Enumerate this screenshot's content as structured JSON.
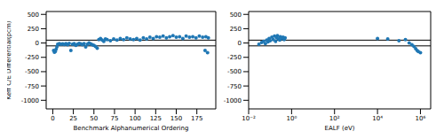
{
  "chart_data": [
    {
      "type": "scatter",
      "x_label": "Benchmark Alphanumerical Ordering",
      "y_label": "Keff C/E Differential(pcm)",
      "color": "#1f77b4",
      "marker": "circle",
      "x": [
        1,
        2,
        3,
        4,
        5,
        6,
        8,
        10,
        12,
        14,
        16,
        18,
        20,
        22,
        24,
        26,
        28,
        30,
        32,
        34,
        36,
        38,
        40,
        42,
        44,
        46,
        48,
        50,
        52,
        54,
        56,
        58,
        60,
        62,
        64,
        66,
        70,
        74,
        78,
        82,
        86,
        90,
        94,
        98,
        102,
        106,
        110,
        114,
        118,
        122,
        126,
        130,
        134,
        138,
        142,
        146,
        150,
        154,
        158,
        162,
        166,
        170,
        174,
        178,
        182,
        185,
        186,
        188,
        189
      ],
      "values": [
        -130,
        -160,
        -150,
        -110,
        -70,
        -20,
        -10,
        -20,
        -15,
        -25,
        -10,
        -30,
        -5,
        -130,
        -20,
        -10,
        -40,
        -20,
        -5,
        -15,
        -30,
        -10,
        -70,
        -20,
        0,
        -15,
        -30,
        -40,
        -60,
        -90,
        60,
        80,
        50,
        30,
        70,
        60,
        40,
        70,
        50,
        80,
        60,
        90,
        70,
        60,
        80,
        50,
        90,
        70,
        100,
        80,
        110,
        100,
        120,
        90,
        110,
        130,
        100,
        110,
        80,
        120,
        100,
        110,
        90,
        120,
        100,
        -130,
        110,
        -170,
        90
      ],
      "xlim": [
        -8,
        198
      ],
      "ylim": [
        -1150,
        550
      ],
      "xticks": [
        0,
        25,
        50,
        75,
        100,
        125,
        150,
        175
      ],
      "yticks": [
        -1000,
        -750,
        -500,
        -250,
        0,
        250,
        500
      ],
      "reference_lines": [
        50,
        -50
      ]
    },
    {
      "type": "scatter",
      "x_label": "EALF (eV)",
      "color": "#1f77b4",
      "marker": "circle",
      "log": "x",
      "x": [
        0.03,
        0.04,
        0.05,
        0.06,
        0.07,
        0.08,
        0.09,
        0.1,
        0.12,
        0.14,
        0.16,
        0.18,
        0.2,
        0.22,
        0.25,
        0.28,
        0.3,
        0.35,
        0.4,
        0.45,
        0.5,
        10000,
        30000,
        100000,
        200000,
        300000,
        400000,
        500000,
        600000,
        700000,
        800000,
        1000000
      ],
      "values": [
        -20,
        10,
        30,
        -10,
        50,
        20,
        80,
        40,
        100,
        60,
        120,
        30,
        90,
        130,
        70,
        50,
        110,
        80,
        100,
        60,
        90,
        80,
        70,
        40,
        60,
        0,
        -30,
        -60,
        -100,
        -130,
        -150,
        -170
      ],
      "xlim": [
        0.01,
        3000000
      ],
      "ylim": [
        -1150,
        550
      ],
      "xticks": [
        {
          "value": 0.01,
          "label": "10⁻²"
        },
        {
          "value": 1,
          "label": "10⁰"
        },
        {
          "value": 100,
          "label": "10²"
        },
        {
          "value": 10000,
          "label": "10⁴"
        },
        {
          "value": 1000000,
          "label": "10⁶"
        }
      ],
      "yticks": [
        -1000,
        -750,
        -500,
        -250,
        0,
        250,
        500
      ],
      "reference_lines": [
        50,
        -50
      ]
    }
  ]
}
